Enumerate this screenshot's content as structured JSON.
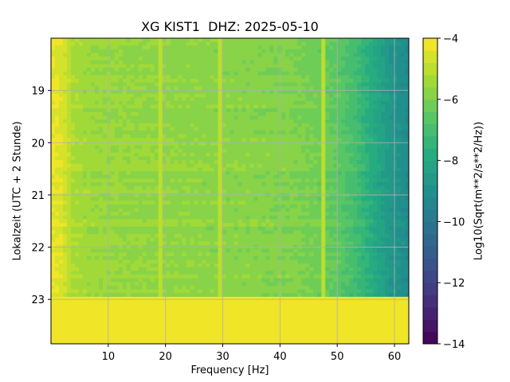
{
  "chart_data": {
    "type": "heatmap",
    "title": "XG KIST1  DHZ: 2025-05-10",
    "xlabel": "Frequency [Hz]",
    "ylabel": "Lokalzeit (UTC + 2 Stunde)",
    "colorbar_label": "Log10(Sqrt(m**2/s**2/Hz))",
    "colormap": "viridis",
    "xlim": [
      0,
      62.5
    ],
    "ylim": [
      23.85,
      18.0
    ],
    "x_ticks": [
      10,
      20,
      30,
      40,
      50,
      60
    ],
    "y_ticks": [
      19,
      20,
      21,
      22,
      23
    ],
    "grid": true,
    "colorbar": {
      "vmin": -14,
      "vmax": -4,
      "ticks": [
        -4,
        -6,
        -8,
        -10,
        -12,
        -14
      ],
      "levels": 25
    },
    "data_time_range": [
      18.0,
      22.95
    ],
    "no_data_fill_value": -4,
    "frequency_profile": [
      [
        0,
        -4.3
      ],
      [
        2,
        -4.5
      ],
      [
        4,
        -5.3
      ],
      [
        8,
        -5.5
      ],
      [
        15,
        -5.6
      ],
      [
        25,
        -5.7
      ],
      [
        35,
        -5.8
      ],
      [
        42,
        -5.9
      ],
      [
        46,
        -6.1
      ],
      [
        50,
        -6.5
      ],
      [
        53,
        -7.0
      ],
      [
        56,
        -7.8
      ],
      [
        59,
        -8.6
      ],
      [
        62.5,
        -9.2
      ]
    ],
    "line_features_hz": [
      {
        "freq": 19.3,
        "value": -5.2
      },
      {
        "freq": 29.7,
        "value": -4.9
      },
      {
        "freq": 47.3,
        "value": -5.0
      }
    ]
  }
}
